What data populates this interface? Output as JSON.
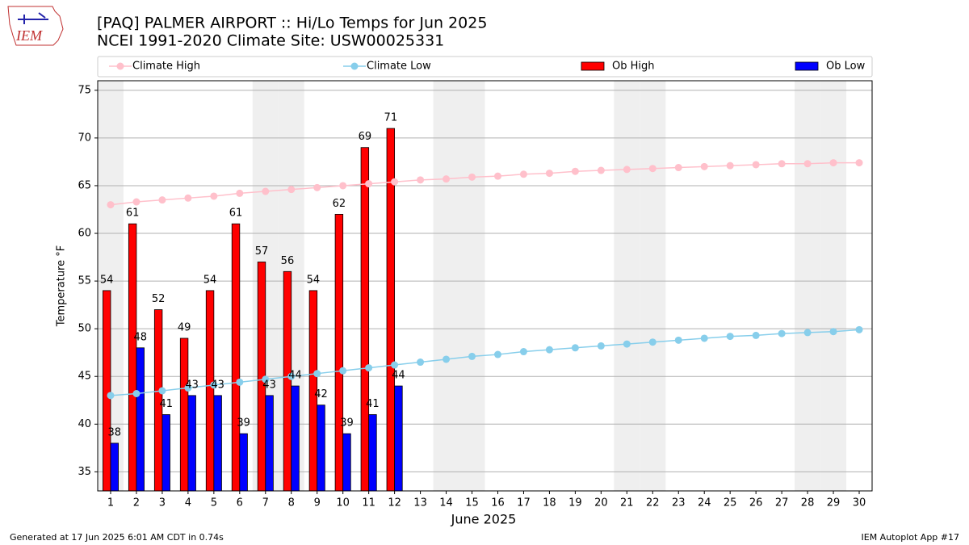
{
  "chart_data": {
    "type": "bar_line",
    "title": "[PAQ] PALMER AIRPORT :: Hi/Lo Temps for Jun 2025",
    "subtitle": "NCEI 1991-2020 Climate Site: USW00025331",
    "logo_text": "IEM",
    "xlabel": "June 2025",
    "ylabel": "Temperature °F",
    "footer_left": "Generated at 17 Jun 2025 6:01 AM CDT in 0.74s",
    "footer_right": "IEM Autoplot App #17",
    "x": [
      1,
      2,
      3,
      4,
      5,
      6,
      7,
      8,
      9,
      10,
      11,
      12,
      13,
      14,
      15,
      16,
      17,
      18,
      19,
      20,
      21,
      22,
      23,
      24,
      25,
      26,
      27,
      28,
      29,
      30
    ],
    "xticks": [
      1,
      2,
      3,
      4,
      5,
      6,
      7,
      8,
      9,
      10,
      11,
      12,
      13,
      14,
      15,
      16,
      17,
      18,
      19,
      20,
      21,
      22,
      23,
      24,
      25,
      26,
      27,
      28,
      29,
      30
    ],
    "xlim": [
      0.5,
      30.5
    ],
    "ylim": [
      33,
      76
    ],
    "yticks": [
      35,
      40,
      45,
      50,
      55,
      60,
      65,
      70,
      75
    ],
    "grid": true,
    "shaded_days": [
      1,
      7,
      8,
      14,
      15,
      21,
      22,
      28,
      29
    ],
    "series": [
      {
        "name": "Climate High",
        "kind": "line",
        "color": "#ffc0cb",
        "values": [
          63.0,
          63.3,
          63.5,
          63.7,
          63.9,
          64.2,
          64.4,
          64.6,
          64.8,
          65.0,
          65.2,
          65.4,
          65.6,
          65.7,
          65.9,
          66.0,
          66.2,
          66.3,
          66.5,
          66.6,
          66.7,
          66.8,
          66.9,
          67.0,
          67.1,
          67.2,
          67.3,
          67.3,
          67.4,
          67.4
        ]
      },
      {
        "name": "Climate Low",
        "kind": "line",
        "color": "#87ceeb",
        "values": [
          43.0,
          43.2,
          43.5,
          43.8,
          44.1,
          44.4,
          44.7,
          45.0,
          45.3,
          45.6,
          45.9,
          46.2,
          46.5,
          46.8,
          47.1,
          47.3,
          47.6,
          47.8,
          48.0,
          48.2,
          48.4,
          48.6,
          48.8,
          49.0,
          49.2,
          49.3,
          49.5,
          49.6,
          49.7,
          49.9
        ]
      },
      {
        "name": "Ob High",
        "kind": "bar",
        "color": "#ff0000",
        "values": [
          54,
          61,
          52,
          49,
          54,
          61,
          57,
          56,
          54,
          62,
          69,
          71,
          null,
          null,
          null,
          null,
          null,
          null,
          null,
          null,
          null,
          null,
          null,
          null,
          null,
          null,
          null,
          null,
          null,
          null
        ]
      },
      {
        "name": "Ob Low",
        "kind": "bar",
        "color": "#0000ff",
        "values": [
          38,
          48,
          41,
          43,
          43,
          39,
          43,
          44,
          42,
          39,
          41,
          44,
          null,
          null,
          null,
          null,
          null,
          null,
          null,
          null,
          null,
          null,
          null,
          null,
          null,
          null,
          null,
          null,
          null,
          null
        ]
      }
    ]
  }
}
